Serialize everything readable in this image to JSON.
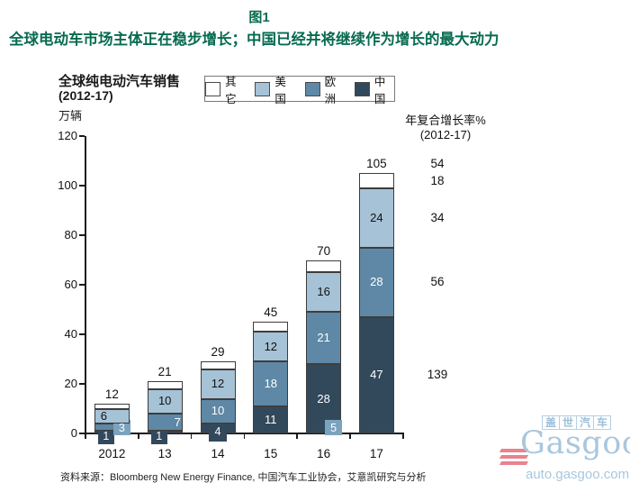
{
  "figure": {
    "tag": "图1",
    "title": "全球电动车市场主体正在稳步增长；中国已经并将继续作为增长的最大动力",
    "title_color": "#076b50"
  },
  "chart": {
    "title": "全球纯电动汽车销售",
    "subtitle": "(2012-17)",
    "unit": "万辆",
    "source": "资料来源：Bloomberg New Energy Finance, 中国汽车工业协会，艾意凯研究与分析"
  },
  "cagr": {
    "title": "年复合增长率%",
    "subtitle": "(2012-17)",
    "values": [
      {
        "align": "total",
        "value": "54"
      },
      {
        "align": "其它",
        "value": "18"
      },
      {
        "align": "美国",
        "value": "34"
      },
      {
        "align": "欧洲",
        "value": "56"
      },
      {
        "align": "中国",
        "value": "139"
      }
    ]
  },
  "chart_data": {
    "type": "bar",
    "stacked": true,
    "title": "全球纯电动汽车销售 (2012-17)",
    "ylabel": "万辆",
    "categories": [
      "2012",
      "13",
      "14",
      "15",
      "16",
      "17"
    ],
    "series": [
      {
        "name": "中国",
        "color": "#32495c",
        "values": [
          1,
          1,
          4,
          11,
          28,
          47
        ],
        "labels": [
          "1",
          "1",
          "4",
          "11",
          "28",
          "47"
        ]
      },
      {
        "name": "欧洲",
        "color": "#5e88a5",
        "values": [
          3,
          7,
          10,
          18,
          21,
          28
        ],
        "labels": [
          "3",
          "7",
          "10",
          "18",
          "21",
          "28"
        ]
      },
      {
        "name": "美国",
        "color": "#a6c2d6",
        "values": [
          6,
          10,
          12,
          12,
          16,
          24
        ],
        "labels": [
          "6",
          "10",
          "12",
          "12",
          "16",
          "24"
        ]
      },
      {
        "name": "其它",
        "color": "#ffffff",
        "values": [
          2,
          3,
          3,
          4,
          5,
          6
        ],
        "labels": [
          "",
          "",
          "",
          "",
          "5",
          ""
        ]
      }
    ],
    "totals": [
      "12",
      "21",
      "29",
      "45",
      "70",
      "105"
    ],
    "ylim": [
      0,
      120
    ],
    "yticks": [
      0,
      20,
      40,
      60,
      80,
      100,
      120
    ],
    "grid": false,
    "legend_position": "top",
    "legend_order": [
      "其它",
      "美国",
      "欧洲",
      "中国"
    ],
    "cagr_percent": {
      "total": 54,
      "其它": 18,
      "美国": 34,
      "欧洲": 56,
      "中国": 139
    }
  },
  "watermark": {
    "brand_cn": "盖世汽车",
    "brand_en": "Gasgoo",
    "url": "auto.gasgoo.com",
    "blue": "#a9c7dd",
    "red": "#e8838f"
  }
}
